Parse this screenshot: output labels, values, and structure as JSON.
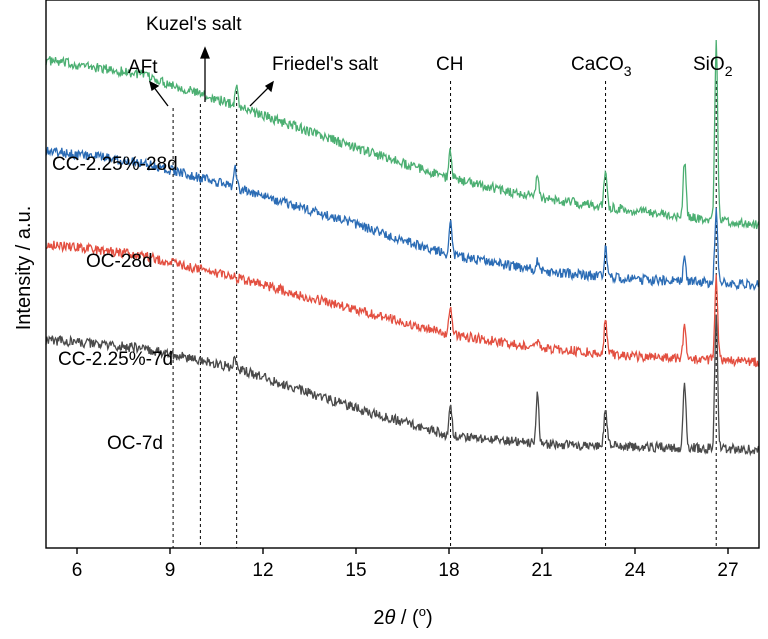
{
  "chart_data": {
    "type": "line",
    "xlabel_prefix": "2",
    "xlabel_symbol": "θ",
    "xlabel_suffix": " / (",
    "xlabel_degree": "o",
    "xlabel_close": ")",
    "ylabel": "Intensity / a.u.",
    "xlim": [
      5,
      28
    ],
    "x_ticks": [
      6,
      9,
      12,
      15,
      18,
      21,
      24,
      27
    ],
    "y_ticks": [],
    "grid": false,
    "reference_lines": [
      {
        "name": "AFt",
        "x": 9.1
      },
      {
        "name": "Kuzel's salt",
        "x": 9.98
      },
      {
        "name": "Friedel's salt",
        "x": 11.15
      },
      {
        "name": "CH",
        "x": 18.05
      },
      {
        "name": "CaCO3",
        "x": 23.05
      },
      {
        "name": "SiO2",
        "x": 26.62
      }
    ],
    "annotations": [
      {
        "id": "aft",
        "text": "AFt"
      },
      {
        "id": "kuzel",
        "text": "Kuzel's salt"
      },
      {
        "id": "friedel",
        "text": "Friedel's salt"
      },
      {
        "id": "ch",
        "text": "CH"
      },
      {
        "id": "caco3",
        "base": "CaCO",
        "sub": "3"
      },
      {
        "id": "sio2",
        "base": "SiO",
        "sub": "2"
      }
    ],
    "series": [
      {
        "name": "CC-2.25%-28d",
        "color": "#4caf72",
        "baseline": [
          [
            5,
            0.89
          ],
          [
            8,
            0.865
          ],
          [
            11,
            0.81
          ],
          [
            15,
            0.73
          ],
          [
            18,
            0.675
          ],
          [
            21,
            0.638
          ],
          [
            24,
            0.615
          ],
          [
            28,
            0.59
          ]
        ],
        "peaks": [
          [
            11.15,
            0.035
          ],
          [
            18.05,
            0.05
          ],
          [
            20.85,
            0.045
          ],
          [
            23.05,
            0.07
          ],
          [
            25.6,
            0.1
          ],
          [
            26.62,
            0.32
          ]
        ]
      },
      {
        "name": "OC-28d",
        "color": "#2b6cb5",
        "baseline": [
          [
            5,
            0.725
          ],
          [
            8,
            0.705
          ],
          [
            11,
            0.66
          ],
          [
            15,
            0.59
          ],
          [
            18,
            0.535
          ],
          [
            21,
            0.505
          ],
          [
            24,
            0.49
          ],
          [
            28,
            0.48
          ]
        ],
        "peaks": [
          [
            11.1,
            0.04
          ],
          [
            18.05,
            0.07
          ],
          [
            20.85,
            0.02
          ],
          [
            23.05,
            0.05
          ],
          [
            25.6,
            0.04
          ],
          [
            26.62,
            0.13
          ]
        ]
      },
      {
        "name": "CC-2.25%-7d",
        "color": "#e34f40",
        "baseline": [
          [
            5,
            0.555
          ],
          [
            8,
            0.535
          ],
          [
            11,
            0.495
          ],
          [
            15,
            0.435
          ],
          [
            18,
            0.39
          ],
          [
            21,
            0.365
          ],
          [
            24,
            0.35
          ],
          [
            28,
            0.34
          ]
        ],
        "peaks": [
          [
            18.05,
            0.055
          ],
          [
            20.85,
            0.01
          ],
          [
            23.05,
            0.06
          ],
          [
            25.6,
            0.06
          ],
          [
            26.62,
            0.15
          ]
        ]
      },
      {
        "name": "OC-7d",
        "color": "#4a4a4a",
        "baseline": [
          [
            5,
            0.38
          ],
          [
            8,
            0.365
          ],
          [
            11,
            0.33
          ],
          [
            15,
            0.255
          ],
          [
            18,
            0.205
          ],
          [
            21,
            0.19
          ],
          [
            24,
            0.185
          ],
          [
            28,
            0.18
          ]
        ],
        "peaks": [
          [
            11.1,
            0.02
          ],
          [
            18.05,
            0.06
          ],
          [
            20.85,
            0.09
          ],
          [
            23.05,
            0.07
          ],
          [
            25.6,
            0.12
          ],
          [
            26.62,
            0.24
          ]
        ]
      }
    ]
  }
}
